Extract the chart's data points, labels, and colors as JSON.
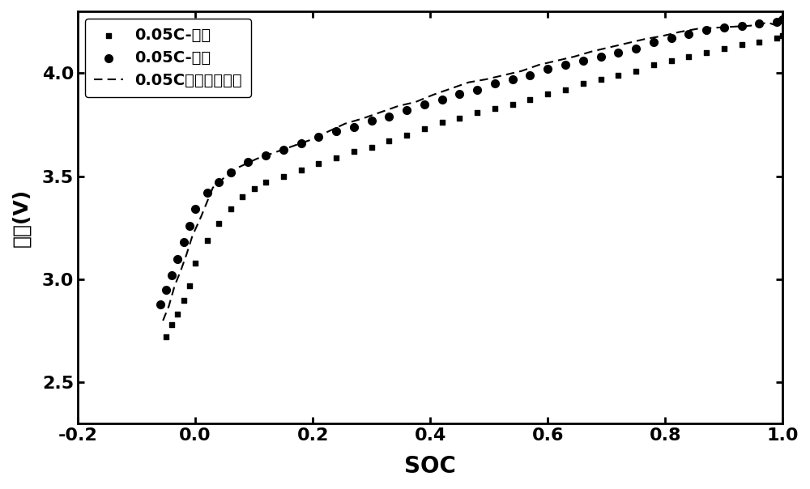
{
  "title": "",
  "xlabel": "SOC",
  "ylabel": "电压(V)",
  "xlim": [
    -0.2,
    1.0
  ],
  "ylim": [
    2.3,
    4.3
  ],
  "xticks": [
    -0.2,
    0.0,
    0.2,
    0.4,
    0.6,
    0.8,
    1.0
  ],
  "yticks": [
    2.5,
    3.0,
    3.5,
    4.0
  ],
  "legend_labels": [
    "0.05C-放电",
    "0.05C-充电",
    "0.05C充放电平均值"
  ],
  "discharge_x": [
    -0.05,
    -0.04,
    -0.03,
    -0.02,
    -0.01,
    0.0,
    0.02,
    0.04,
    0.06,
    0.08,
    0.1,
    0.12,
    0.15,
    0.18,
    0.21,
    0.24,
    0.27,
    0.3,
    0.33,
    0.36,
    0.39,
    0.42,
    0.45,
    0.48,
    0.51,
    0.54,
    0.57,
    0.6,
    0.63,
    0.66,
    0.69,
    0.72,
    0.75,
    0.78,
    0.81,
    0.84,
    0.87,
    0.9,
    0.93,
    0.96,
    0.99,
    1.0
  ],
  "discharge_y": [
    2.72,
    2.78,
    2.83,
    2.9,
    2.97,
    3.08,
    3.19,
    3.27,
    3.34,
    3.4,
    3.44,
    3.47,
    3.5,
    3.53,
    3.56,
    3.59,
    3.62,
    3.64,
    3.67,
    3.7,
    3.73,
    3.76,
    3.78,
    3.81,
    3.83,
    3.85,
    3.87,
    3.9,
    3.92,
    3.95,
    3.97,
    3.99,
    4.01,
    4.04,
    4.06,
    4.08,
    4.1,
    4.12,
    4.14,
    4.15,
    4.17,
    4.18
  ],
  "charge_x": [
    -0.06,
    -0.05,
    -0.04,
    -0.03,
    -0.02,
    -0.01,
    0.0,
    0.02,
    0.04,
    0.06,
    0.09,
    0.12,
    0.15,
    0.18,
    0.21,
    0.24,
    0.27,
    0.3,
    0.33,
    0.36,
    0.39,
    0.42,
    0.45,
    0.48,
    0.51,
    0.54,
    0.57,
    0.6,
    0.63,
    0.66,
    0.69,
    0.72,
    0.75,
    0.78,
    0.81,
    0.84,
    0.87,
    0.9,
    0.93,
    0.96,
    0.99,
    1.0
  ],
  "charge_y": [
    2.88,
    2.95,
    3.02,
    3.1,
    3.18,
    3.26,
    3.34,
    3.42,
    3.47,
    3.52,
    3.57,
    3.6,
    3.63,
    3.66,
    3.69,
    3.72,
    3.74,
    3.77,
    3.79,
    3.82,
    3.85,
    3.87,
    3.9,
    3.92,
    3.95,
    3.97,
    3.99,
    4.02,
    4.04,
    4.06,
    4.08,
    4.1,
    4.12,
    4.15,
    4.17,
    4.19,
    4.21,
    4.22,
    4.23,
    4.24,
    4.25,
    4.26
  ],
  "avg_x": [
    -0.055,
    -0.045,
    -0.035,
    -0.025,
    -0.015,
    -0.005,
    0.01,
    0.03,
    0.05,
    0.075,
    0.105,
    0.135,
    0.165,
    0.195,
    0.225,
    0.255,
    0.285,
    0.315,
    0.345,
    0.375,
    0.405,
    0.435,
    0.465,
    0.495,
    0.525,
    0.555,
    0.585,
    0.615,
    0.645,
    0.675,
    0.705,
    0.735,
    0.765,
    0.795,
    0.825,
    0.855,
    0.885,
    0.915,
    0.945,
    0.975,
    1.0
  ],
  "avg_y": [
    2.8,
    2.87,
    2.97,
    3.04,
    3.12,
    3.21,
    3.305,
    3.445,
    3.495,
    3.545,
    3.585,
    3.615,
    3.645,
    3.675,
    3.715,
    3.755,
    3.78,
    3.81,
    3.84,
    3.86,
    3.895,
    3.925,
    3.955,
    3.97,
    3.99,
    4.01,
    4.04,
    4.06,
    4.08,
    4.105,
    4.125,
    4.145,
    4.165,
    4.18,
    4.2,
    4.215,
    4.22,
    4.225,
    4.23,
    4.245,
    4.22
  ],
  "color": "#000000",
  "background_color": "#ffffff",
  "marker_size_square": 5,
  "marker_size_circle": 7,
  "linewidth": 1.5
}
